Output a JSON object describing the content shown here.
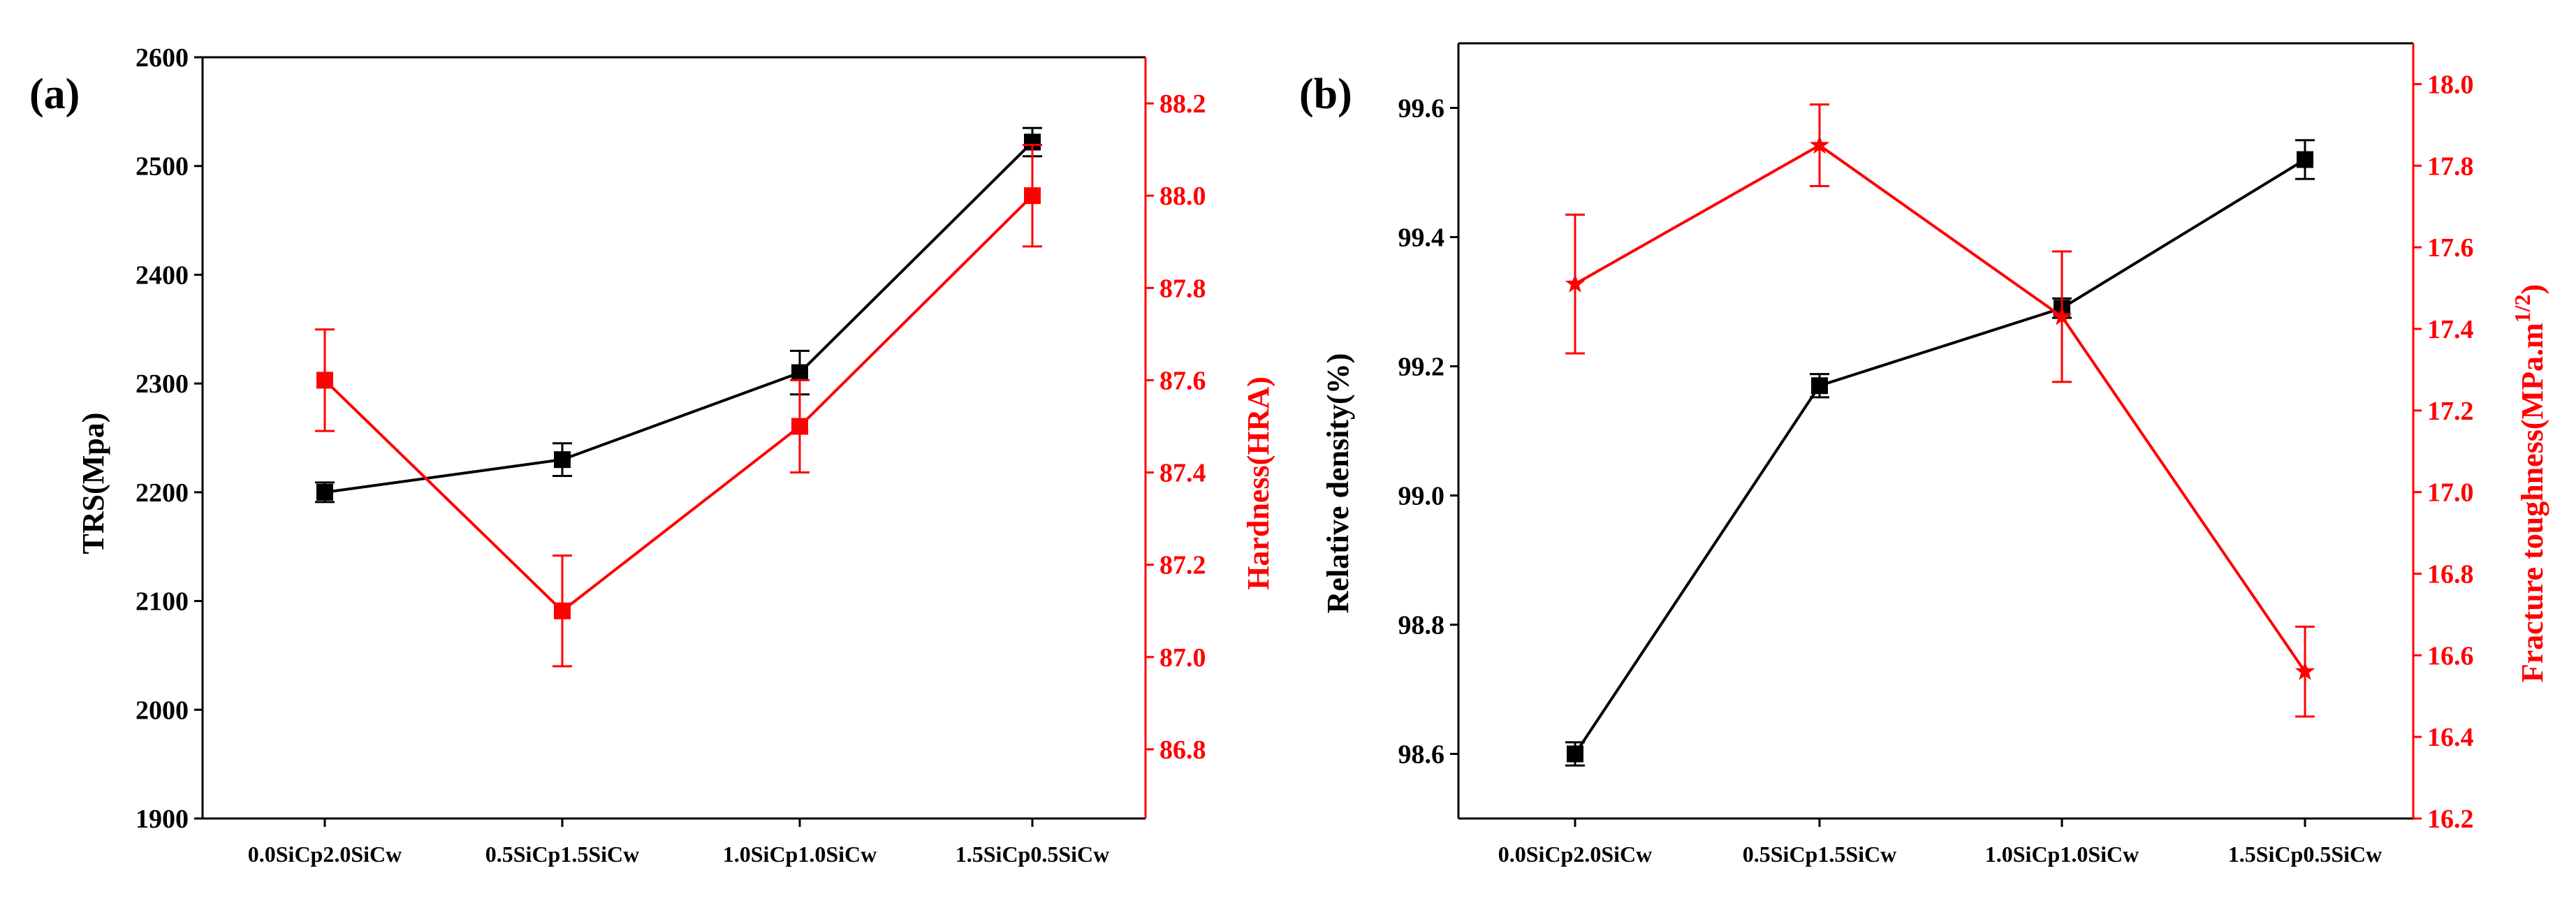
{
  "colors": {
    "black_series": "#000000",
    "red_series": "#ff0000"
  },
  "chart_data": [
    {
      "type": "line",
      "panel_label": "(a)",
      "categories": [
        "0.0SiCp2.0SiCw",
        "0.5SiCp1.5SiCw",
        "1.0SiCp1.0SiCw",
        "1.5SiCp0.5SiCw"
      ],
      "ylabel": "TRS(Mpa)",
      "ylim": [
        1900,
        2600
      ],
      "yticks": [
        "1900",
        "2000",
        "2100",
        "2200",
        "2300",
        "2400",
        "2500",
        "2600"
      ],
      "y2label": "Hardness(HRA)",
      "y2lim": [
        86.65,
        88.3
      ],
      "y2ticks": [
        "86.8",
        "87.0",
        "87.2",
        "87.4",
        "87.6",
        "87.8",
        "88.0",
        "88.2"
      ],
      "series": [
        {
          "name": "TRS",
          "axis": "left",
          "color": "#000000",
          "marker": "square",
          "values": [
            2200,
            2230,
            2310,
            2522
          ],
          "errors": [
            9,
            15,
            20,
            13
          ]
        },
        {
          "name": "Hardness",
          "axis": "right",
          "color": "#ff0000",
          "marker": "square",
          "values": [
            87.6,
            87.1,
            87.5,
            88.0
          ],
          "errors": [
            0.11,
            0.12,
            0.1,
            0.11
          ]
        }
      ]
    },
    {
      "type": "line",
      "panel_label": "(b)",
      "categories": [
        "0.0SiCp2.0SiCw",
        "0.5SiCp1.5SiCw",
        "1.0SiCp1.0SiCw",
        "1.5SiCp0.5SiCw"
      ],
      "ylabel": "Relative density(%)",
      "ylim": [
        98.5,
        99.7
      ],
      "yticks": [
        "98.6",
        "98.8",
        "99.0",
        "99.2",
        "99.4",
        "99.6"
      ],
      "y2label_main": "Fracture toughness(MPa.m",
      "y2label_sup": "1/2",
      "y2label_end": ")",
      "y2lim": [
        16.2,
        18.1
      ],
      "y2ticks": [
        "16.2",
        "16.4",
        "16.6",
        "16.8",
        "17.0",
        "17.2",
        "17.4",
        "17.6",
        "17.8",
        "18.0"
      ],
      "series": [
        {
          "name": "Relative density",
          "axis": "left",
          "color": "#000000",
          "marker": "square",
          "values": [
            98.6,
            99.17,
            99.29,
            99.52
          ],
          "errors": [
            0.018,
            0.018,
            0.015,
            0.03
          ]
        },
        {
          "name": "Fracture toughness",
          "axis": "right",
          "color": "#ff0000",
          "marker": "star",
          "values": [
            17.51,
            17.85,
            17.43,
            16.56
          ],
          "errors": [
            0.17,
            0.1,
            0.16,
            0.11
          ]
        }
      ]
    }
  ]
}
